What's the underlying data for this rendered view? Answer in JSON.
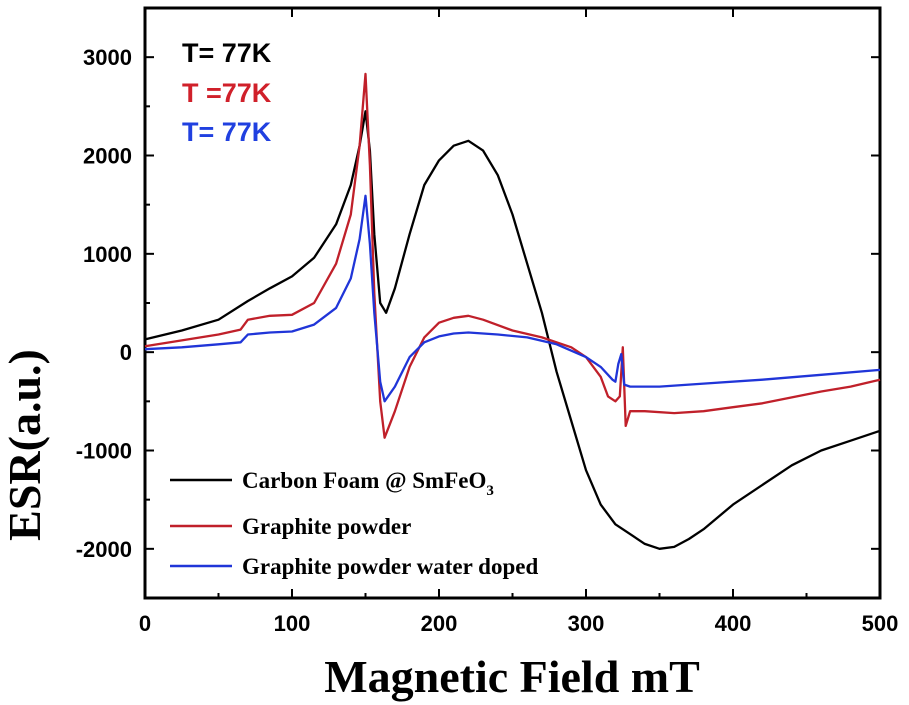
{
  "chart_data": {
    "type": "line",
    "title": "",
    "xlabel": "Magnetic Field mT",
    "ylabel": "ESR(a.u.)",
    "xlim": [
      0,
      500
    ],
    "ylim": [
      -2500,
      3500
    ],
    "x_ticks": [
      0,
      100,
      200,
      300,
      400,
      500
    ],
    "y_ticks": [
      -2000,
      -1000,
      0,
      1000,
      2000,
      3000
    ],
    "grid": false,
    "legend_position": "bottom-left",
    "annotations": [
      {
        "text": "T= 77K",
        "color": "#000000"
      },
      {
        "text": "T =77K",
        "color": "#d0202a"
      },
      {
        "text": "T= 77K",
        "color": "#2040e0"
      }
    ],
    "series": [
      {
        "name": "Carbon Foam @ SmFeO3",
        "legend_label": "Carbon Foam @ SmFeO",
        "legend_subscript": "3",
        "color": "#000000",
        "x": [
          0,
          25,
          50,
          70,
          85,
          100,
          115,
          130,
          140,
          146,
          150,
          153,
          156,
          160,
          164,
          170,
          180,
          190,
          200,
          210,
          220,
          230,
          240,
          250,
          260,
          270,
          280,
          290,
          300,
          310,
          320,
          330,
          340,
          350,
          360,
          370,
          380,
          400,
          420,
          440,
          460,
          480,
          500
        ],
        "y": [
          130,
          220,
          330,
          520,
          650,
          770,
          960,
          1300,
          1700,
          2100,
          2450,
          2050,
          1200,
          500,
          400,
          650,
          1200,
          1700,
          1950,
          2100,
          2150,
          2050,
          1800,
          1400,
          900,
          400,
          -200,
          -700,
          -1200,
          -1550,
          -1750,
          -1850,
          -1950,
          -2000,
          -1980,
          -1900,
          -1800,
          -1550,
          -1350,
          -1150,
          -1000,
          -900,
          -800
        ]
      },
      {
        "name": "Graphite powder",
        "color": "#c0202a",
        "x": [
          0,
          25,
          50,
          65,
          70,
          85,
          100,
          115,
          130,
          140,
          146,
          150,
          153,
          156,
          160,
          163,
          170,
          180,
          190,
          200,
          210,
          220,
          230,
          250,
          270,
          290,
          300,
          310,
          315,
          320,
          323,
          325,
          327,
          330,
          340,
          360,
          380,
          400,
          420,
          440,
          460,
          480,
          500
        ],
        "y": [
          60,
          120,
          180,
          230,
          330,
          370,
          380,
          500,
          900,
          1400,
          2100,
          2830,
          1900,
          600,
          -500,
          -870,
          -600,
          -150,
          150,
          300,
          350,
          370,
          330,
          220,
          150,
          50,
          -50,
          -250,
          -450,
          -500,
          -450,
          50,
          -750,
          -600,
          -600,
          -620,
          -600,
          -560,
          -520,
          -460,
          -400,
          -350,
          -280
        ]
      },
      {
        "name": "Graphite powder water doped",
        "color": "#2035d8",
        "x": [
          0,
          25,
          50,
          65,
          70,
          85,
          100,
          115,
          130,
          140,
          146,
          150,
          153,
          156,
          160,
          163,
          170,
          180,
          190,
          200,
          210,
          220,
          240,
          260,
          280,
          300,
          310,
          318,
          320,
          322,
          324,
          326,
          330,
          350,
          380,
          420,
          460,
          500
        ],
        "y": [
          30,
          50,
          80,
          100,
          180,
          200,
          210,
          280,
          450,
          750,
          1150,
          1590,
          1100,
          400,
          -300,
          -500,
          -350,
          -50,
          100,
          160,
          190,
          200,
          180,
          150,
          80,
          -50,
          -150,
          -280,
          -300,
          -120,
          -20,
          -330,
          -350,
          -350,
          -320,
          -280,
          -230,
          -180
        ]
      }
    ]
  }
}
